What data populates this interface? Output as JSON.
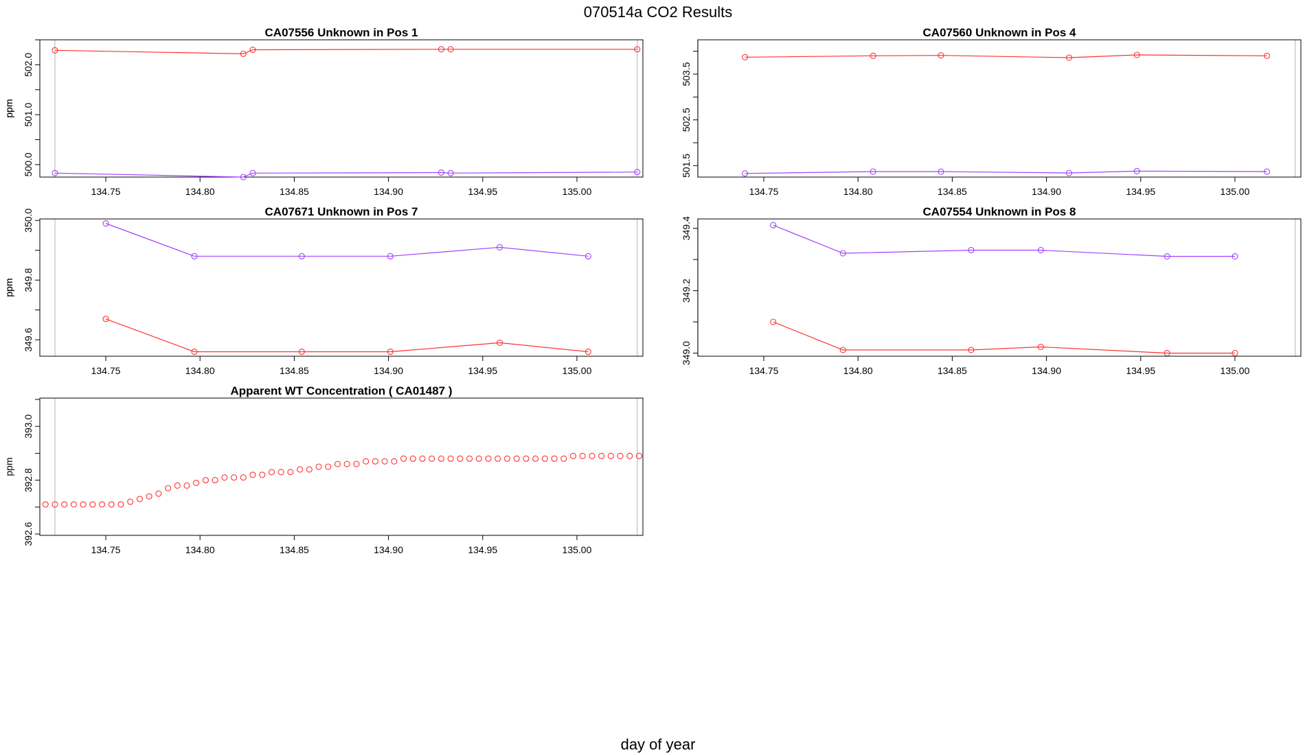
{
  "figure": {
    "title": "070514a  CO2 Results",
    "xlabel": "day of year"
  },
  "colors": {
    "series_a": "#ff3030",
    "series_b": "#a040ff",
    "vline": "#cccccc",
    "axis": "#000000"
  },
  "chart_data": [
    {
      "type": "line",
      "title": "CA07556    Unknown in Pos 1",
      "ylabel": "ppm",
      "xlim": [
        134.715,
        135.035
      ],
      "ylim": [
        499.75,
        502.5
      ],
      "xticks": [
        134.75,
        134.8,
        134.85,
        134.9,
        134.95,
        135.0
      ],
      "xtick_labels": [
        "134.75",
        "134.80",
        "134.85",
        "134.90",
        "134.95",
        "135.00"
      ],
      "yticks": [
        500.0,
        501.0,
        502.0
      ],
      "ytick_labels": [
        "500.0",
        "501.0",
        "502.0"
      ],
      "vlines": [
        134.723,
        135.032
      ],
      "series": [
        {
          "color": "#ff3030",
          "x": [
            134.723,
            134.823,
            134.828,
            134.928,
            134.933,
            135.032
          ],
          "y": [
            502.29,
            502.22,
            502.3,
            502.31,
            502.31,
            502.31
          ]
        },
        {
          "color": "#a040ff",
          "x": [
            134.723,
            134.823,
            134.828,
            134.928,
            134.933,
            135.032
          ],
          "y": [
            499.83,
            499.75,
            499.83,
            499.84,
            499.83,
            499.85
          ]
        }
      ]
    },
    {
      "type": "line",
      "title": "CA07560    Unknown in Pos 4",
      "ylabel": "ppm",
      "xlim": [
        134.715,
        135.035
      ],
      "ylim": [
        501.25,
        504.25
      ],
      "xticks": [
        134.75,
        134.8,
        134.85,
        134.9,
        134.95,
        135.0
      ],
      "xtick_labels": [
        "134.75",
        "134.80",
        "134.85",
        "134.90",
        "134.95",
        "135.00"
      ],
      "yticks": [
        501.5,
        502.5,
        503.5
      ],
      "ytick_labels": [
        "501.5",
        "502.5",
        "503.5"
      ],
      "vlines": [
        134.715,
        135.032
      ],
      "series": [
        {
          "color": "#ff3030",
          "x": [
            134.74,
            134.808,
            134.844,
            134.912,
            134.948,
            135.017
          ],
          "y": [
            503.87,
            503.9,
            503.91,
            503.86,
            503.92,
            503.9
          ]
        },
        {
          "color": "#a040ff",
          "x": [
            134.74,
            134.808,
            134.844,
            134.912,
            134.948,
            135.017
          ],
          "y": [
            501.33,
            501.37,
            501.37,
            501.34,
            501.38,
            501.37
          ]
        }
      ]
    },
    {
      "type": "line",
      "title": "CA07671    Unknown in Pos 7",
      "ylabel": "ppm",
      "xlim": [
        134.715,
        135.035
      ],
      "ylim": [
        349.545,
        350.005
      ],
      "xticks": [
        134.75,
        134.8,
        134.85,
        134.9,
        134.95,
        135.0
      ],
      "xtick_labels": [
        "134.75",
        "134.80",
        "134.85",
        "134.90",
        "134.95",
        "135.00"
      ],
      "yticks": [
        349.6,
        349.8,
        350.0
      ],
      "ytick_labels": [
        "349.6",
        "349.8",
        "350.0"
      ],
      "vlines": [
        134.723,
        135.032
      ],
      "series": [
        {
          "color": "#a040ff",
          "x": [
            134.75,
            134.797,
            134.854,
            134.901,
            134.959,
            135.006
          ],
          "y": [
            349.99,
            349.88,
            349.88,
            349.88,
            349.91,
            349.88
          ]
        },
        {
          "color": "#ff3030",
          "x": [
            134.75,
            134.797,
            134.854,
            134.901,
            134.959,
            135.006
          ],
          "y": [
            349.67,
            349.56,
            349.56,
            349.56,
            349.59,
            349.56
          ]
        }
      ]
    },
    {
      "type": "line",
      "title": "CA07554    Unknown in Pos 8",
      "ylabel": "ppm",
      "xlim": [
        134.715,
        135.035
      ],
      "ylim": [
        348.99,
        349.43
      ],
      "xticks": [
        134.75,
        134.8,
        134.85,
        134.9,
        134.95,
        135.0
      ],
      "xtick_labels": [
        "134.75",
        "134.80",
        "134.85",
        "134.90",
        "134.95",
        "135.00"
      ],
      "yticks": [
        349.0,
        349.2,
        349.4
      ],
      "ytick_labels": [
        "349.0",
        "349.2",
        "349.4"
      ],
      "vlines": [
        134.715,
        135.032
      ],
      "series": [
        {
          "color": "#a040ff",
          "x": [
            134.755,
            134.792,
            134.86,
            134.897,
            134.964,
            135.0
          ],
          "y": [
            349.41,
            349.32,
            349.33,
            349.33,
            349.31,
            349.31
          ]
        },
        {
          "color": "#ff3030",
          "x": [
            134.755,
            134.792,
            134.86,
            134.897,
            134.964,
            135.0
          ],
          "y": [
            349.1,
            349.01,
            349.01,
            349.02,
            349.0,
            349.0
          ]
        }
      ]
    },
    {
      "type": "scatter",
      "title": "Apparent WT Concentration ( CA01487 )",
      "ylabel": "ppm",
      "xlim": [
        134.715,
        135.035
      ],
      "ylim": [
        392.595,
        393.105
      ],
      "xticks": [
        134.75,
        134.8,
        134.85,
        134.9,
        134.95,
        135.0
      ],
      "xtick_labels": [
        "134.75",
        "134.80",
        "134.85",
        "134.90",
        "134.95",
        "135.00"
      ],
      "yticks": [
        392.6,
        392.8,
        393.0
      ],
      "ytick_labels": [
        "392.6",
        "392.8",
        "393.0"
      ],
      "vlines": [
        134.723,
        135.032
      ],
      "series": [
        {
          "color": "#ff3030",
          "x": [
            134.718,
            134.723,
            134.728,
            134.733,
            134.738,
            134.743,
            134.748,
            134.753,
            134.758,
            134.763,
            134.768,
            134.773,
            134.778,
            134.783,
            134.788,
            134.793,
            134.798,
            134.803,
            134.808,
            134.813,
            134.818,
            134.823,
            134.828,
            134.833,
            134.838,
            134.843,
            134.848,
            134.853,
            134.858,
            134.863,
            134.868,
            134.873,
            134.878,
            134.883,
            134.888,
            134.893,
            134.898,
            134.903,
            134.908,
            134.913,
            134.918,
            134.923,
            134.928,
            134.933,
            134.938,
            134.943,
            134.948,
            134.953,
            134.958,
            134.963,
            134.968,
            134.973,
            134.978,
            134.983,
            134.988,
            134.993,
            134.998,
            135.003,
            135.008,
            135.013,
            135.018,
            135.023,
            135.028,
            135.033
          ],
          "y": [
            392.71,
            392.71,
            392.71,
            392.71,
            392.71,
            392.71,
            392.71,
            392.71,
            392.71,
            392.72,
            392.73,
            392.74,
            392.75,
            392.77,
            392.78,
            392.78,
            392.79,
            392.8,
            392.8,
            392.81,
            392.81,
            392.81,
            392.82,
            392.82,
            392.83,
            392.83,
            392.83,
            392.84,
            392.84,
            392.85,
            392.85,
            392.86,
            392.86,
            392.86,
            392.87,
            392.87,
            392.87,
            392.87,
            392.88,
            392.88,
            392.88,
            392.88,
            392.88,
            392.88,
            392.88,
            392.88,
            392.88,
            392.88,
            392.88,
            392.88,
            392.88,
            392.88,
            392.88,
            392.88,
            392.88,
            392.88,
            392.89,
            392.89,
            392.89,
            392.89,
            392.89,
            392.89,
            392.89,
            392.89
          ]
        }
      ]
    }
  ]
}
